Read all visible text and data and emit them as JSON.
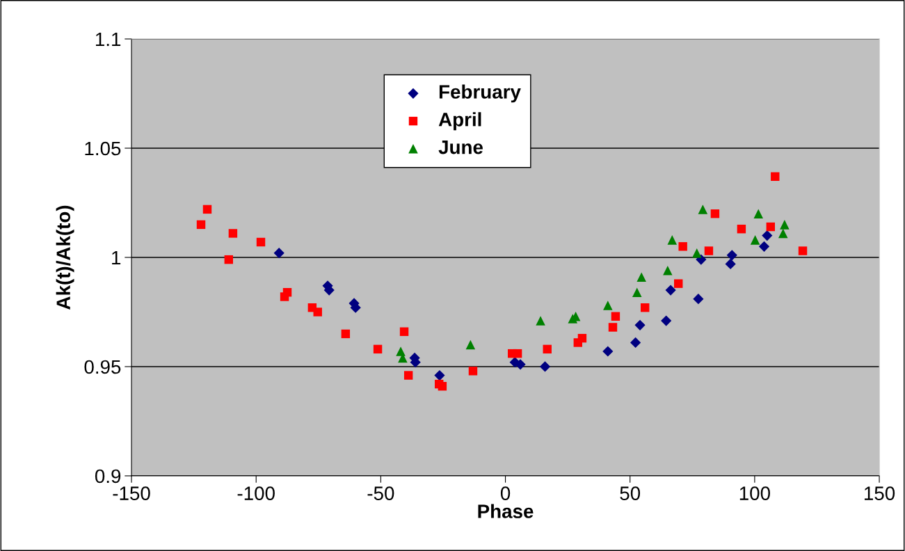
{
  "chart_data": {
    "type": "scatter",
    "xlabel": "Phase",
    "ylabel": "Ak(t)/Ak(to)",
    "xlim": [
      -150,
      150
    ],
    "xticks": [
      -150,
      -100,
      -50,
      0,
      50,
      100,
      150
    ],
    "ylim": [
      0.9,
      1.1
    ],
    "yticks": [
      {
        "value": 0.9,
        "label": "0.9"
      },
      {
        "value": 0.95,
        "label": "0.95"
      },
      {
        "value": 1.0,
        "label": "1"
      },
      {
        "value": 1.05,
        "label": "1.05"
      },
      {
        "value": 1.1,
        "label": "1.1"
      }
    ],
    "grid": "y",
    "legend": "top",
    "series": [
      {
        "name": "February",
        "color": "#000080",
        "marker": "diamond",
        "x": [
          -90.8,
          -71.3,
          -70.7,
          -60.7,
          -60.1,
          -36.4,
          -36.1,
          -26.4,
          3.8,
          6.0,
          15.9,
          41.1,
          52.2,
          54.0,
          64.5,
          66.3,
          77.4,
          78.5,
          90.3,
          90.9,
          103.8,
          105.0
        ],
        "values": [
          1.002,
          0.987,
          0.985,
          0.979,
          0.977,
          0.954,
          0.952,
          0.946,
          0.952,
          0.951,
          0.95,
          0.957,
          0.961,
          0.969,
          0.971,
          0.985,
          0.981,
          0.999,
          0.997,
          1.001,
          1.005,
          1.01
        ]
      },
      {
        "name": "April",
        "color": "#ff0000",
        "marker": "square",
        "x": [
          -122.1,
          -119.6,
          -111.0,
          -109.3,
          -98.1,
          -88.6,
          -87.5,
          -77.5,
          -75.3,
          -64.1,
          -51.2,
          -40.6,
          -38.9,
          -26.6,
          -25.3,
          -13.0,
          2.7,
          4.9,
          16.8,
          29.1,
          30.8,
          43.1,
          44.2,
          56.0,
          69.4,
          71.2,
          81.6,
          84.1,
          94.7,
          106.4,
          108.2,
          119.3
        ],
        "values": [
          1.015,
          1.022,
          0.999,
          1.011,
          1.007,
          0.982,
          0.984,
          0.977,
          0.975,
          0.965,
          0.958,
          0.966,
          0.946,
          0.942,
          0.941,
          0.948,
          0.956,
          0.956,
          0.958,
          0.961,
          0.963,
          0.968,
          0.973,
          0.977,
          0.988,
          1.005,
          1.003,
          1.02,
          1.013,
          1.014,
          1.037,
          1.003
        ]
      },
      {
        "name": "June",
        "color": "#008000",
        "marker": "triangle",
        "x": [
          -42.0,
          -41.2,
          -14.0,
          14.1,
          27.0,
          28.2,
          41.1,
          52.8,
          54.6,
          65.1,
          66.9,
          76.8,
          79.2,
          100.2,
          101.5,
          111.4,
          112.0
        ],
        "values": [
          0.957,
          0.954,
          0.96,
          0.971,
          0.972,
          0.973,
          0.978,
          0.984,
          0.991,
          0.994,
          1.008,
          1.002,
          1.022,
          1.008,
          1.02,
          1.011,
          1.015
        ]
      }
    ]
  }
}
